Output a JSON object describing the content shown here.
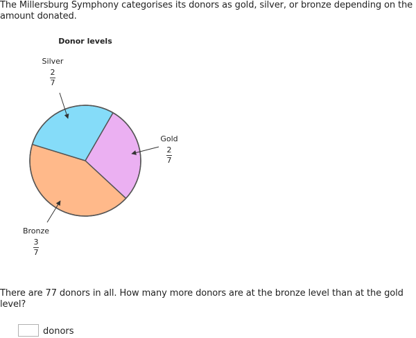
{
  "intro": "The Millersburg Symphony categorises its donors as gold, silver, or bronze depending on the amount donated.",
  "chart_data": {
    "type": "pie",
    "title": "Donor levels",
    "slices": [
      {
        "label": "Gold",
        "numerator": "2",
        "denominator": "7",
        "value": 0.2857,
        "color": "#ebb0f2"
      },
      {
        "label": "Bronze",
        "numerator": "3",
        "denominator": "7",
        "value": 0.4286,
        "color": "#ffb98a"
      },
      {
        "label": "Silver",
        "numerator": "2",
        "denominator": "7",
        "value": 0.2857,
        "color": "#85dcf9"
      }
    ]
  },
  "question": "There are 77 donors in all. How many more donors are at the bronze level than at the gold level?",
  "answer": {
    "value": "",
    "unit": "donors"
  }
}
